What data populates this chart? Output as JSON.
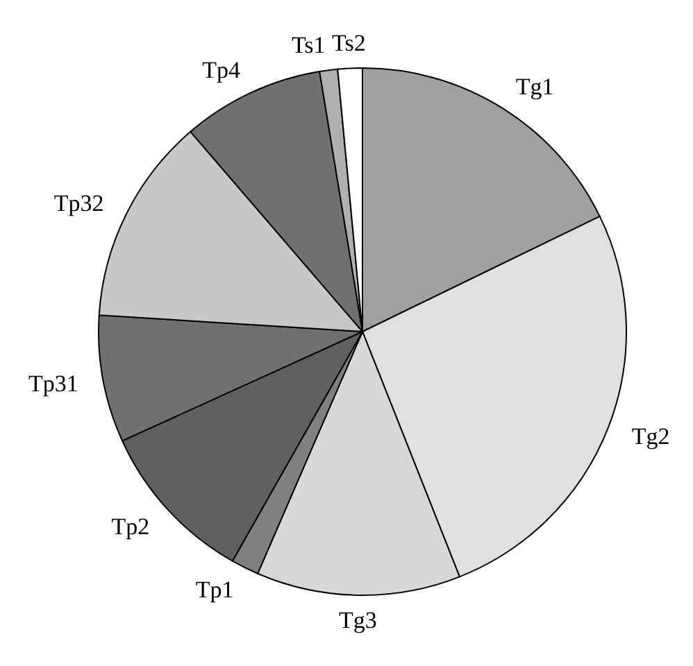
{
  "chart_data": {
    "type": "pie",
    "categories": [
      "Tg1",
      "Tg2",
      "Tg3",
      "Tp1",
      "Tp2",
      "Tp31",
      "Tp32",
      "Tp4",
      "Ts1",
      "Ts2"
    ],
    "values": [
      17.8,
      26.2,
      12.5,
      1.7,
      10,
      7.8,
      12.7,
      8.7,
      1.1,
      1.5
    ],
    "colors": [
      "#a0a0a0",
      "#e0e0e0",
      "#d8d8d8",
      "#808080",
      "#606060",
      "#707070",
      "#c8c8c8",
      "#707070",
      "#b0b0b0",
      "#ffffff"
    ],
    "legend": false
  }
}
